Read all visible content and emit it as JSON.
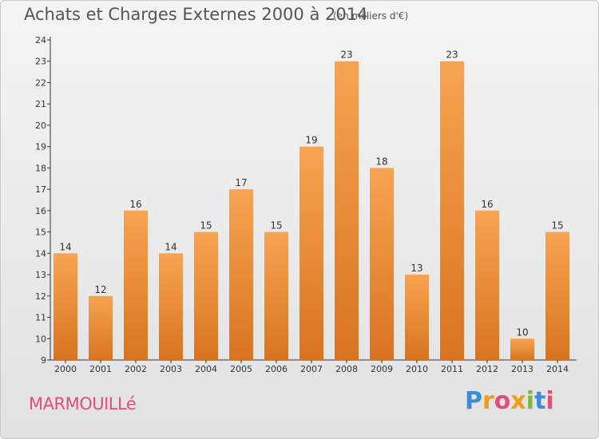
{
  "header": {
    "title": "Achats et Charges Externes 2000 à 2014",
    "unit": "(en milliers d'€)"
  },
  "footer": {
    "town": "MARMOUILLé",
    "brand": "Proxiti",
    "brand_colors": [
      "#3b8ed6",
      "#f29a1a",
      "#e0507a",
      "#f29a1a",
      "#7dbb3a",
      "#3b8ed6",
      "#e0507a"
    ]
  },
  "colors": {
    "bar_light": "#f7a452",
    "bar_dark": "#d8741f",
    "axis": "#333333",
    "text": "#333333"
  },
  "chart_data": {
    "type": "bar",
    "title": "Achats et Charges Externes 2000 à 2014",
    "subtitle": "(en milliers d'€)",
    "categories": [
      "2000",
      "2001",
      "2002",
      "2003",
      "2004",
      "2005",
      "2006",
      "2007",
      "2008",
      "2009",
      "2010",
      "2011",
      "2012",
      "2013",
      "2014"
    ],
    "values": [
      14,
      12,
      16,
      14,
      15,
      17,
      15,
      19,
      23,
      18,
      13,
      23,
      16,
      10,
      15
    ],
    "ylim": [
      9,
      24
    ],
    "yticks": [
      9,
      10,
      11,
      12,
      13,
      14,
      15,
      16,
      17,
      18,
      19,
      20,
      21,
      22,
      23,
      24
    ],
    "xlabel": "",
    "ylabel": "",
    "grid": false,
    "legend": "none",
    "data_labels": true
  }
}
